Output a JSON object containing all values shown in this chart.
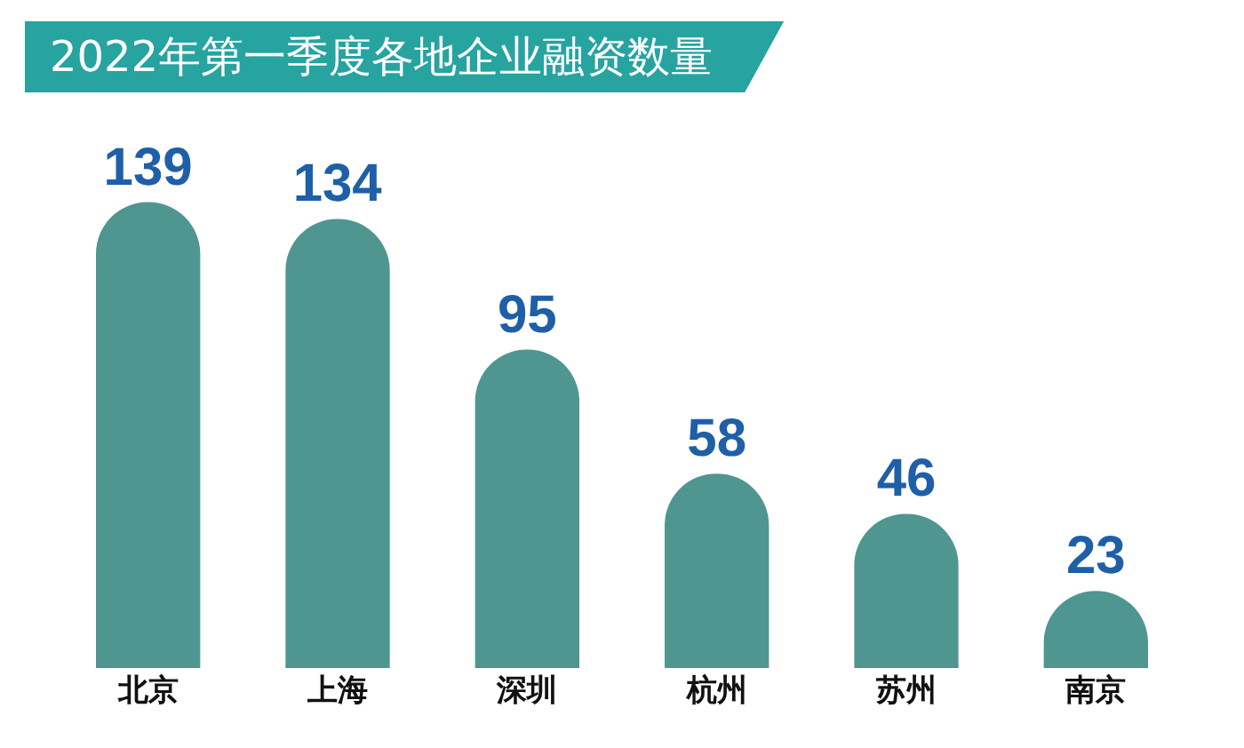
{
  "chart_data": {
    "type": "bar",
    "title": "2022年第一季度各地企业融资数量",
    "categories": [
      "北京",
      "上海",
      "深圳",
      "杭州",
      "苏州",
      "南京"
    ],
    "values": [
      139,
      134,
      95,
      58,
      46,
      23
    ],
    "color": "#4f9690",
    "data_labels": true,
    "grid": false,
    "legend": false,
    "tick_labels": "x"
  }
}
